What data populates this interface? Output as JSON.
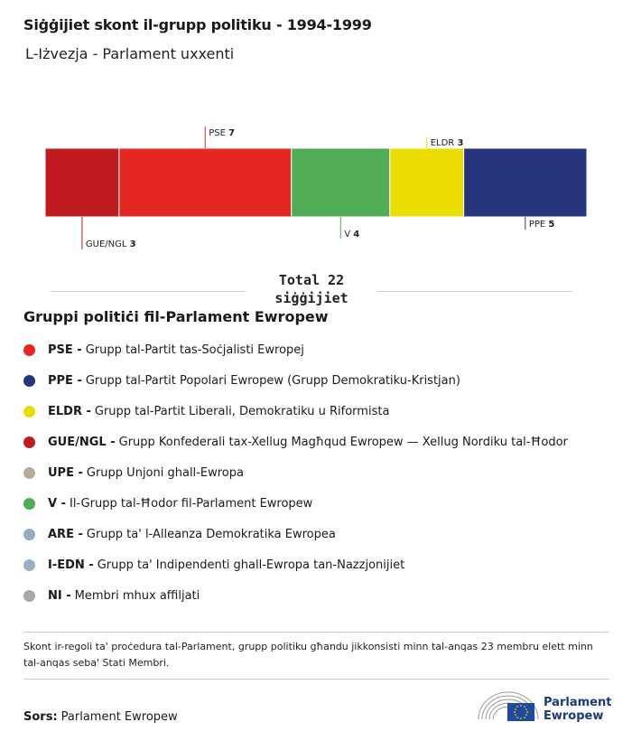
{
  "title": "Siġġijiet skont il-grupp politiku - 1994-1999",
  "subtitle": "L-Iżvezja - Parlament uxxenti",
  "chart_data": {
    "type": "bar",
    "orientation": "stacked-horizontal",
    "categories": [
      "GUE/NGL",
      "PSE",
      "V",
      "ELDR",
      "PPE"
    ],
    "values": [
      3,
      7,
      4,
      3,
      5
    ],
    "colors": [
      "#c01c1f",
      "#e52722",
      "#51ad55",
      "#ebdd00",
      "#27357d"
    ],
    "label_sides": [
      "below",
      "above",
      "below",
      "above",
      "below"
    ],
    "total_label": "Total 22",
    "total_unit": "siġġijiet"
  },
  "legend": {
    "title": "Gruppi politiċi fil-Parlament Ewropew",
    "items": [
      {
        "abbr": "PSE -",
        "text": "Grupp tal-Partit tas-Soċjalisti Ewropej",
        "color": "#e52722"
      },
      {
        "abbr": "PPE -",
        "text": "Grupp tal-Partit Popolari Ewropew (Grupp Demokratiku-Kristjan)",
        "color": "#27357d"
      },
      {
        "abbr": "ELDR -",
        "text": "Grupp tal-Partit Liberali, Demokratiku u Riformista",
        "color": "#ebdd00"
      },
      {
        "abbr": "GUE/NGL -",
        "text": "Grupp Konfederali tax-Xellug Magħqud Ewropew — Xellug Nordiku tal-Ħodor",
        "color": "#c01c1f"
      },
      {
        "abbr": "UPE -",
        "text": "Grupp Unjoni ghall-Ewropa",
        "color": "#b5ad9c"
      },
      {
        "abbr": "V -",
        "text": "Il-Grupp tal-Ħodor fil-Parlament Ewropew",
        "color": "#51ad55"
      },
      {
        "abbr": "ARE -",
        "text": "Grupp ta' l-Alleanza Demokratika Ewropea",
        "color": "#8fafc3"
      },
      {
        "abbr": "I-EDN -",
        "text": "Grupp ta' Indipendenti ghall-Ewropa tan-Nazzjonijiet",
        "color": "#93b2c4"
      },
      {
        "abbr": "NI -",
        "text": "Membri mhux affiljati",
        "color": "#a7a7a7"
      }
    ]
  },
  "footnote": "Skont ir-regoli ta' proċedura tal-Parlament, grupp politiku għandu jikkonsisti minn tal-anqas 23 membru elett minn tal-anqas seba' Stati Membri.",
  "source": {
    "label": "Sors:",
    "text": "Parlament Ewropew"
  },
  "logo": {
    "line1": "Parlament",
    "line2": "Ewropew"
  }
}
